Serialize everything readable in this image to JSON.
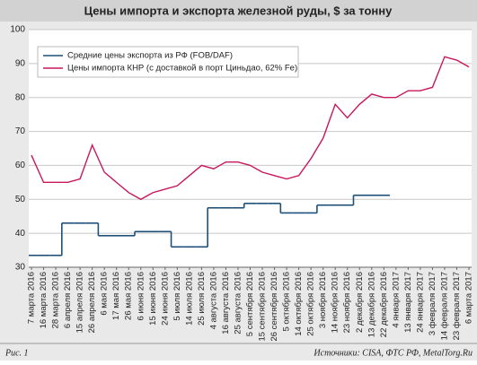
{
  "chart_data": {
    "type": "line",
    "title": "Цены импорта и экспорта железной руды, $ за тонну",
    "figure_label": "Рис. 1",
    "source": "Источники: CISA, ФТС РФ, MetalTorg.Ru",
    "categories": [
      "7 марта 2016",
      "16 марта 2016",
      "28 марта 2016",
      "6 апреля 2016",
      "15 апреля 2016",
      "26 апреля 2016",
      "6 мая 2016",
      "17 мая 2016",
      "26 мая 2016",
      "6 июня 2016",
      "15 июня 2016",
      "24 июня 2016",
      "5 июля 2016",
      "14 июля 2016",
      "25 июля 2016",
      "4 августа 2016",
      "16 августа 2016",
      "25 августа 2016",
      "5 сентября 2016",
      "15 сентября 2016",
      "26 сентября 2016",
      "5 октября 2016",
      "14 октября 2016",
      "25 октября 2016",
      "3 ноября 2016",
      "14 ноября 2016",
      "23 ноября 2016",
      "2 декабря 2016",
      "13 декабря 2016",
      "22 декабря 2016",
      "4 января 2017",
      "13 января 2017",
      "24 января 2017",
      "3 февраля 2017",
      "14 февраля 2017",
      "23 февраля 2017",
      "6 марта 2017"
    ],
    "series": [
      {
        "name": "Средние цены экспорта из РФ (FOB/DAF)",
        "color": "#1d4f78",
        "step": true,
        "values": [
          33.5,
          33.5,
          33.5,
          43,
          43,
          43,
          39.3,
          39.3,
          39.3,
          40.5,
          40.5,
          40.5,
          36,
          36,
          36,
          47.5,
          47.5,
          47.5,
          48.8,
          48.8,
          48.8,
          46,
          46,
          46,
          48.3,
          48.3,
          48.3,
          51.2,
          51.2,
          51.2,
          null,
          null,
          null,
          null,
          null,
          null,
          null
        ]
      },
      {
        "name": "Цены импорта КНР (с доставкой в порт Циньдао, 62% Fe)",
        "color": "#c8175d",
        "values": [
          63,
          55,
          55,
          55,
          56,
          66,
          58,
          55,
          52,
          50,
          52,
          53,
          54,
          57,
          60,
          59,
          61,
          61,
          60,
          58,
          57,
          56,
          57,
          62,
          68,
          78,
          74,
          78,
          81,
          80,
          80,
          82,
          82,
          83,
          92,
          91,
          89
        ]
      }
    ],
    "ylim": [
      30,
      100
    ],
    "yticks": [
      30,
      40,
      50,
      60,
      70,
      80,
      90,
      100
    ],
    "grid": true
  }
}
